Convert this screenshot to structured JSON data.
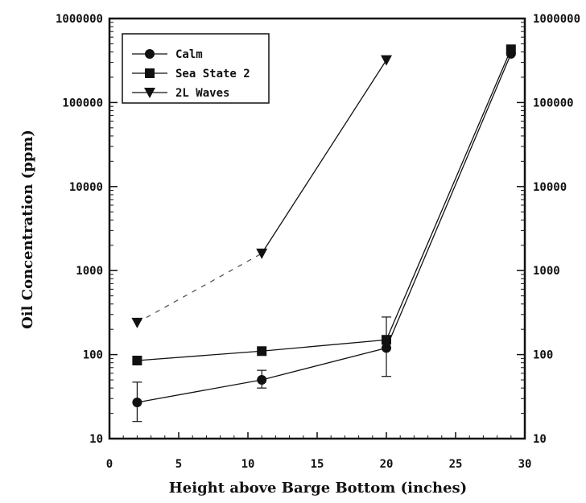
{
  "chart_data": {
    "type": "line",
    "xlabel": "Height above Barge Bottom (inches)",
    "ylabel": "Oil Concentration (ppm)",
    "xlim": [
      0,
      30
    ],
    "ylim": [
      10,
      1000000
    ],
    "yscale": "log",
    "x_ticks": [
      "0",
      "5",
      "10",
      "15",
      "20",
      "25",
      "30"
    ],
    "y_ticks_left": [
      "10",
      "100",
      "1000",
      "10000",
      "100000",
      "1000000"
    ],
    "y_ticks_right": [
      "10",
      "100",
      "1000",
      "10000",
      "100000",
      "1000000"
    ],
    "grid": false,
    "legend_position": "top-left",
    "series": [
      {
        "name": "Calm",
        "marker": "circle",
        "x": [
          2,
          11,
          20,
          29
        ],
        "y": [
          27,
          50,
          120,
          380000
        ],
        "error_low": [
          16,
          40,
          55,
          null
        ],
        "error_high": [
          47,
          65,
          280,
          null
        ]
      },
      {
        "name": "Sea State 2",
        "marker": "square",
        "x": [
          2,
          11,
          20,
          29
        ],
        "y": [
          85,
          110,
          150,
          430000
        ]
      },
      {
        "name": "2L Waves",
        "marker": "triangle-down",
        "x": [
          2,
          11,
          20
        ],
        "y": [
          240,
          1600,
          320000
        ],
        "segment_style": [
          "dashed",
          "solid"
        ]
      }
    ]
  }
}
